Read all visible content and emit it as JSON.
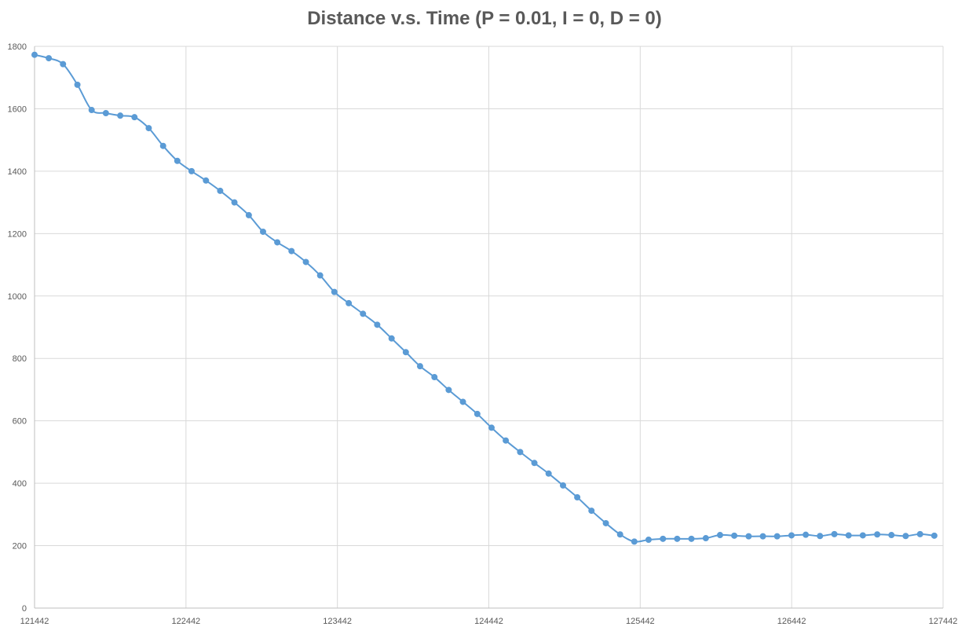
{
  "chart_data": {
    "type": "line",
    "title": "Distance v.s. Time (P = 0.01, I = 0, D = 0)",
    "xlabel": "",
    "ylabel": "",
    "xlim": [
      121442,
      127442
    ],
    "ylim": [
      0,
      1800
    ],
    "x_ticks": [
      121442,
      122442,
      123442,
      124442,
      125442,
      126442,
      127442
    ],
    "y_ticks": [
      0,
      200,
      400,
      600,
      800,
      1000,
      1200,
      1400,
      1600,
      1800
    ],
    "grid": true,
    "legend": "none",
    "colors": {
      "series": "#5b9bd5",
      "grid": "#d9d9d9",
      "text": "#595959"
    },
    "series": [
      {
        "x": [
          121442,
          121536,
          121630,
          121725,
          121819,
          121913,
          122008,
          122102,
          122196,
          122291,
          122385,
          122479,
          122574,
          122668,
          122762,
          122857,
          122951,
          123045,
          123139,
          123234,
          123328,
          123422,
          123517,
          123611,
          123705,
          123800,
          123894,
          123988,
          124083,
          124177,
          124271,
          124366,
          124460,
          124554,
          124649,
          124743,
          124837,
          124932,
          125026,
          125120,
          125215,
          125309,
          125403,
          125497,
          125592,
          125686,
          125780,
          125875,
          125969,
          126063,
          126158,
          126252,
          126346,
          126441,
          126535,
          126629,
          126724,
          126818,
          126912,
          127007,
          127101,
          127195,
          127290,
          127384
        ],
        "y": [
          1773,
          1762,
          1743,
          1677,
          1596,
          1586,
          1578,
          1573,
          1538,
          1481,
          1433,
          1400,
          1370,
          1337,
          1300,
          1259,
          1206,
          1172,
          1144,
          1109,
          1066,
          1013,
          977,
          943,
          908,
          864,
          820,
          775,
          740,
          699,
          661,
          622,
          578,
          537,
          500,
          465,
          431,
          393,
          355,
          312,
          272,
          236,
          213,
          219,
          222,
          222,
          222,
          224,
          234,
          232,
          230,
          230,
          230,
          233,
          235,
          231,
          237,
          233,
          233,
          236,
          234,
          231,
          237,
          232
        ]
      }
    ]
  }
}
